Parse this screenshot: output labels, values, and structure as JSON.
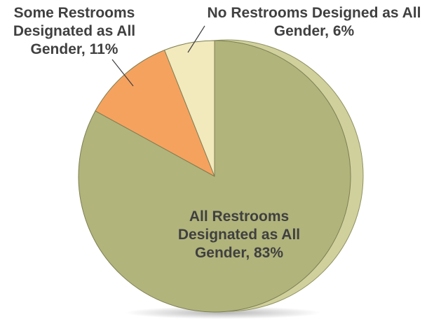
{
  "chart_data": {
    "type": "pie",
    "slices": [
      {
        "label": "All Restrooms Designated as All Gender, 83%",
        "value": 83,
        "color": "#b1b47b"
      },
      {
        "label": "Some Restrooms Designated as All Gender, 11%",
        "value": 11,
        "color": "#f6a25f"
      },
      {
        "label": "No Restrooms Designed as All Gender, 6%",
        "value": 6,
        "color": "#f2e9bd"
      }
    ],
    "labels": {
      "all": [
        "All Restrooms",
        "Designated as All",
        "Gender, 83%"
      ],
      "some": [
        "Some Restrooms",
        "Designated as All",
        "Gender, 11%"
      ],
      "none": [
        "No Restrooms Designed as All",
        "Gender, 6%"
      ]
    },
    "edge_color": "#cfd09c"
  }
}
